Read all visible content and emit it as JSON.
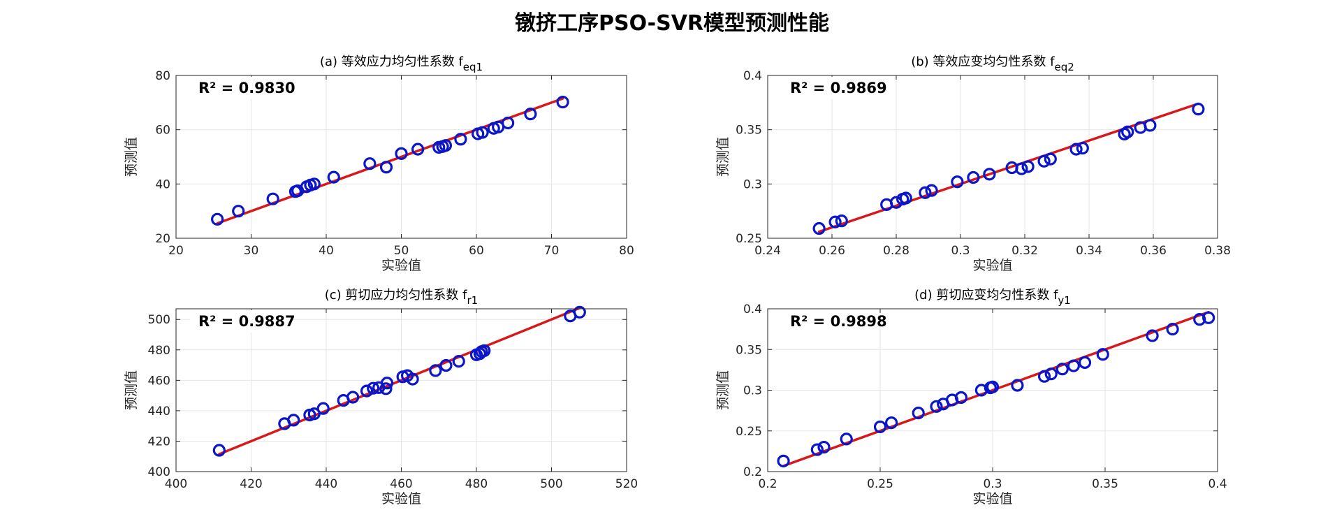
{
  "figure": {
    "title": "镦挤工序PSO-SVR模型预测性能"
  },
  "chart_data": [
    {
      "type": "scatter",
      "title": "(a) 等效应力均匀性系数 f",
      "title_sub": "eq1",
      "xlabel": "实验值",
      "ylabel": "预测值",
      "r2_label": "R² = 0.9830",
      "xlim": [
        20,
        80
      ],
      "ylim": [
        20,
        80
      ],
      "xticks": [
        20,
        30,
        40,
        50,
        60,
        70,
        80
      ],
      "yticks": [
        20,
        40,
        60,
        80
      ],
      "xtick_labels": [
        "20",
        "30",
        "40",
        "50",
        "60",
        "70",
        "80"
      ],
      "ytick_labels": [
        "20",
        "40",
        "60",
        "80"
      ],
      "grid": true,
      "fit_line": {
        "x": [
          25.5,
          71.5
        ],
        "y": [
          25.5,
          71.5
        ]
      },
      "points": [
        [
          25.5,
          27.0
        ],
        [
          28.3,
          30.0
        ],
        [
          32.9,
          34.5
        ],
        [
          35.9,
          37.2
        ],
        [
          36.2,
          37.5
        ],
        [
          37.4,
          39.0
        ],
        [
          37.9,
          39.6
        ],
        [
          38.4,
          40.0
        ],
        [
          41.0,
          42.5
        ],
        [
          45.8,
          47.5
        ],
        [
          48.0,
          46.2
        ],
        [
          50.0,
          51.2
        ],
        [
          52.2,
          52.8
        ],
        [
          55.0,
          53.5
        ],
        [
          55.5,
          53.8
        ],
        [
          55.9,
          54.2
        ],
        [
          57.9,
          56.5
        ],
        [
          60.2,
          58.5
        ],
        [
          60.8,
          59.0
        ],
        [
          62.3,
          60.5
        ],
        [
          62.9,
          61.0
        ],
        [
          64.2,
          62.5
        ],
        [
          67.2,
          65.8
        ],
        [
          71.5,
          70.2
        ]
      ]
    },
    {
      "type": "scatter",
      "title": "(b) 等效应变均匀性系数 f",
      "title_sub": "eq2",
      "xlabel": "实验值",
      "ylabel": "预测值",
      "r2_label": "R² = 0.9869",
      "xlim": [
        0.24,
        0.38
      ],
      "ylim": [
        0.25,
        0.4
      ],
      "xticks": [
        0.24,
        0.26,
        0.28,
        0.3,
        0.32,
        0.34,
        0.36,
        0.38
      ],
      "yticks": [
        0.25,
        0.3,
        0.35,
        0.4
      ],
      "xtick_labels": [
        "0.24",
        "0.26",
        "0.28",
        "0.3",
        "0.32",
        "0.34",
        "0.36",
        "0.38"
      ],
      "ytick_labels": [
        "0.25",
        "0.3",
        "0.35",
        "0.4"
      ],
      "grid": true,
      "fit_line": {
        "x": [
          0.256,
          0.374
        ],
        "y": [
          0.256,
          0.374
        ]
      },
      "points": [
        [
          0.256,
          0.259
        ],
        [
          0.261,
          0.265
        ],
        [
          0.263,
          0.266
        ],
        [
          0.277,
          0.281
        ],
        [
          0.28,
          0.283
        ],
        [
          0.282,
          0.286
        ],
        [
          0.283,
          0.287
        ],
        [
          0.289,
          0.292
        ],
        [
          0.291,
          0.294
        ],
        [
          0.299,
          0.302
        ],
        [
          0.304,
          0.306
        ],
        [
          0.309,
          0.309
        ],
        [
          0.316,
          0.315
        ],
        [
          0.319,
          0.314
        ],
        [
          0.321,
          0.316
        ],
        [
          0.326,
          0.321
        ],
        [
          0.328,
          0.323
        ],
        [
          0.336,
          0.332
        ],
        [
          0.338,
          0.333
        ],
        [
          0.351,
          0.346
        ],
        [
          0.352,
          0.348
        ],
        [
          0.356,
          0.352
        ],
        [
          0.359,
          0.354
        ],
        [
          0.374,
          0.369
        ]
      ]
    },
    {
      "type": "scatter",
      "title": "(c) 剪切应力均匀性系数 f",
      "title_sub": "r1",
      "xlabel": "实验值",
      "ylabel": "预测值",
      "r2_label": "R² = 0.9887",
      "xlim": [
        400,
        520
      ],
      "ylim": [
        400,
        507
      ],
      "xticks": [
        400,
        420,
        440,
        460,
        480,
        500,
        520
      ],
      "yticks": [
        400,
        420,
        440,
        460,
        480,
        500
      ],
      "xtick_labels": [
        "400",
        "420",
        "440",
        "460",
        "480",
        "500",
        "520"
      ],
      "ytick_labels": [
        "400",
        "420",
        "440",
        "460",
        "480",
        "500"
      ],
      "grid": true,
      "fit_line": {
        "x": [
          411.5,
          507.5
        ],
        "y": [
          411.5,
          507.5
        ]
      },
      "points": [
        [
          411.5,
          414.0
        ],
        [
          428.9,
          431.5
        ],
        [
          431.3,
          433.8
        ],
        [
          435.6,
          437.2
        ],
        [
          436.8,
          438.0
        ],
        [
          439.2,
          441.5
        ],
        [
          444.6,
          446.8
        ],
        [
          447.1,
          448.9
        ],
        [
          450.8,
          453.0
        ],
        [
          452.5,
          454.8
        ],
        [
          454.0,
          455.2
        ],
        [
          455.9,
          454.5
        ],
        [
          456.2,
          458.2
        ],
        [
          460.4,
          462.3
        ],
        [
          461.6,
          463.1
        ],
        [
          463.0,
          460.8
        ],
        [
          469.1,
          466.4
        ],
        [
          471.9,
          469.8
        ],
        [
          475.3,
          472.5
        ],
        [
          480.0,
          476.8
        ],
        [
          480.9,
          477.5
        ],
        [
          481.4,
          478.9
        ],
        [
          482.1,
          479.5
        ],
        [
          505.0,
          502.3
        ],
        [
          507.5,
          504.8
        ]
      ]
    },
    {
      "type": "scatter",
      "title": "(d) 剪切应变均匀性系数 f",
      "title_sub": "y1",
      "xlabel": "实验值",
      "ylabel": "预测值",
      "r2_label": "R² = 0.9898",
      "xlim": [
        0.2,
        0.4
      ],
      "ylim": [
        0.2,
        0.4
      ],
      "xticks": [
        0.2,
        0.25,
        0.3,
        0.35,
        0.4
      ],
      "yticks": [
        0.2,
        0.25,
        0.3,
        0.35,
        0.4
      ],
      "xtick_labels": [
        "0.2",
        "0.25",
        "0.3",
        "0.35",
        "0.4"
      ],
      "ytick_labels": [
        "0.2",
        "0.25",
        "0.3",
        "0.35",
        "0.4"
      ],
      "grid": true,
      "fit_line": {
        "x": [
          0.207,
          0.396
        ],
        "y": [
          0.207,
          0.396
        ]
      },
      "points": [
        [
          0.207,
          0.213
        ],
        [
          0.222,
          0.227
        ],
        [
          0.225,
          0.23
        ],
        [
          0.235,
          0.24
        ],
        [
          0.25,
          0.255
        ],
        [
          0.255,
          0.26
        ],
        [
          0.267,
          0.272
        ],
        [
          0.275,
          0.28
        ],
        [
          0.278,
          0.283
        ],
        [
          0.282,
          0.288
        ],
        [
          0.286,
          0.291
        ],
        [
          0.295,
          0.3
        ],
        [
          0.299,
          0.303
        ],
        [
          0.3,
          0.304
        ],
        [
          0.311,
          0.306
        ],
        [
          0.323,
          0.317
        ],
        [
          0.326,
          0.32
        ],
        [
          0.331,
          0.326
        ],
        [
          0.336,
          0.33
        ],
        [
          0.341,
          0.334
        ],
        [
          0.349,
          0.344
        ],
        [
          0.371,
          0.367
        ],
        [
          0.38,
          0.375
        ],
        [
          0.392,
          0.387
        ],
        [
          0.396,
          0.389
        ]
      ]
    }
  ]
}
